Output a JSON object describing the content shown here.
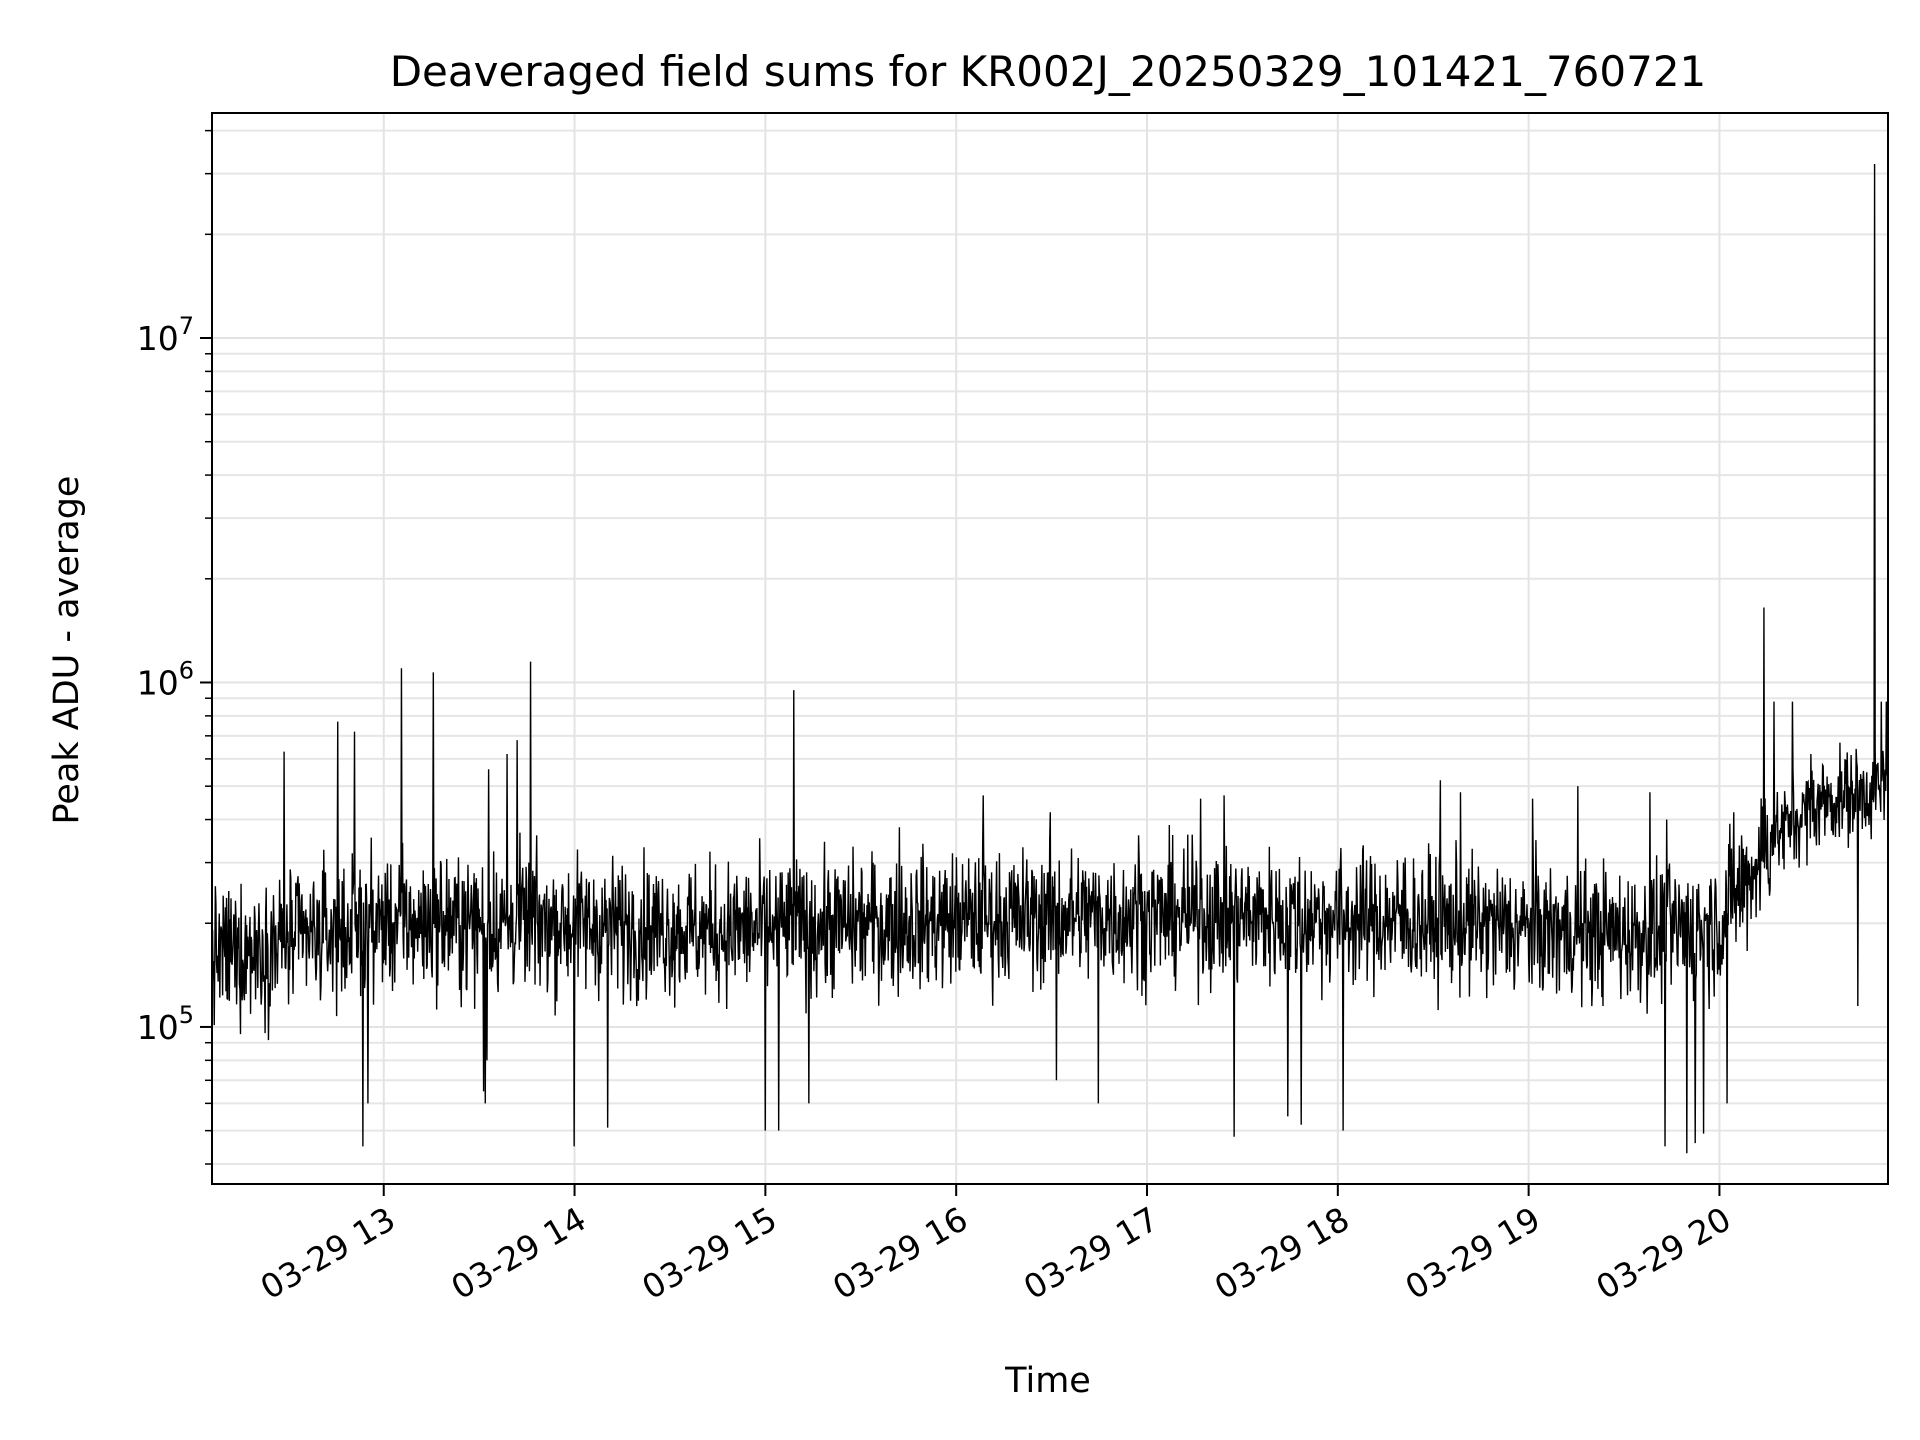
{
  "chart_data": {
    "type": "line",
    "title": "Deaveraged field sums for KR002J_20250329_101421_760721",
    "xlabel": "Time",
    "ylabel": "Peak ADU - average",
    "x_axis": {
      "kind": "time",
      "range": [
        "2025-03-29T12:06",
        "2025-03-29T20:53"
      ],
      "ticks": [
        "03-29 13",
        "03-29 14",
        "03-29 15",
        "03-29 16",
        "03-29 17",
        "03-29 18",
        "03-29 19",
        "03-29 20"
      ]
    },
    "y_axis": {
      "scale": "log",
      "range": [
        35000,
        45000000
      ],
      "ticks": [
        {
          "base": "10",
          "exp": "5"
        },
        {
          "base": "10",
          "exp": "6"
        },
        {
          "base": "10",
          "exp": "7"
        }
      ]
    },
    "grid": true,
    "line_color": "#000000",
    "series": [
      {
        "x_start": "2025-03-29T12:06",
        "x_end": "2025-03-29T20:53",
        "baseline": [
          [
            0.0,
            160000
          ],
          [
            0.1,
            200000
          ],
          [
            0.2,
            200000
          ],
          [
            0.3,
            190000
          ],
          [
            0.4,
            200000
          ],
          [
            0.5,
            210000
          ],
          [
            0.6,
            210000
          ],
          [
            0.7,
            205000
          ],
          [
            0.8,
            190000
          ],
          [
            0.86,
            185000
          ],
          [
            0.9,
            200000
          ],
          [
            0.93,
            350000
          ],
          [
            0.96,
            450000
          ],
          [
            1.0,
            500000
          ]
        ],
        "spikes": [
          [
            0.043,
            630000
          ],
          [
            0.075,
            770000
          ],
          [
            0.085,
            720000
          ],
          [
            0.093,
            60000
          ],
          [
            0.09,
            45000
          ],
          [
            0.113,
            1100000
          ],
          [
            0.132,
            1070000
          ],
          [
            0.165,
            560000
          ],
          [
            0.182,
            680000
          ],
          [
            0.162,
            53000
          ],
          [
            0.164,
            80000
          ],
          [
            0.162,
            65000
          ],
          [
            0.176,
            60000
          ],
          [
            0.163,
            60000
          ],
          [
            0.19,
            1150000
          ],
          [
            0.176,
            620000
          ],
          [
            0.216,
            45000
          ],
          [
            0.236,
            51000
          ],
          [
            0.347,
            950000
          ],
          [
            0.33,
            50000
          ],
          [
            0.338,
            50000
          ],
          [
            0.356,
            60000
          ],
          [
            0.41,
            380000
          ],
          [
            0.5,
            420000
          ],
          [
            0.504,
            70000
          ],
          [
            0.46,
            470000
          ],
          [
            0.529,
            60000
          ],
          [
            0.553,
            360000
          ],
          [
            0.59,
            460000
          ],
          [
            0.604,
            470000
          ],
          [
            0.61,
            48000
          ],
          [
            0.65,
            490000
          ],
          [
            0.642,
            55000
          ],
          [
            0.65,
            52000
          ],
          [
            0.675,
            50000
          ],
          [
            0.712,
            310000
          ],
          [
            0.733,
            520000
          ],
          [
            0.745,
            480000
          ],
          [
            0.788,
            460000
          ],
          [
            0.815,
            500000
          ],
          [
            0.858,
            480000
          ],
          [
            0.868,
            400000
          ],
          [
            0.867,
            45000
          ],
          [
            0.88,
            43000
          ],
          [
            0.885,
            46000
          ],
          [
            0.89,
            49000
          ],
          [
            0.908,
            420000
          ],
          [
            0.904,
            60000
          ],
          [
            0.926,
            1650000
          ],
          [
            0.932,
            880000
          ],
          [
            0.943,
            880000
          ],
          [
            0.954,
            620000
          ],
          [
            0.982,
            115000
          ],
          [
            0.992,
            32000000
          ],
          [
            0.996,
            880000
          ],
          [
            0.999,
            880000
          ]
        ]
      }
    ]
  }
}
